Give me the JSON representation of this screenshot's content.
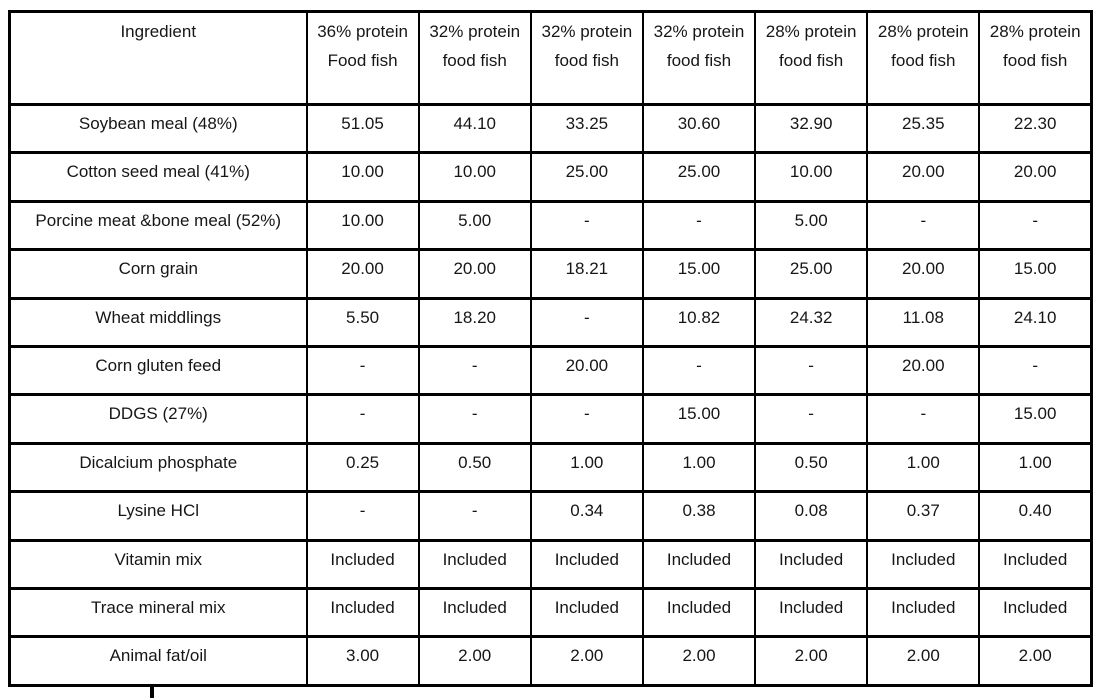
{
  "table": {
    "header": {
      "ingredient": "Ingredient",
      "columns": [
        {
          "line1": "36% protein",
          "line2": "Food fish"
        },
        {
          "line1": "32% protein",
          "line2": "food fish"
        },
        {
          "line1": "32% protein",
          "line2": "food fish"
        },
        {
          "line1": "32% protein",
          "line2": "food fish"
        },
        {
          "line1": "28% protein",
          "line2": "food fish"
        },
        {
          "line1": "28% protein",
          "line2": "food fish"
        },
        {
          "line1": "28% protein",
          "line2": "food fish"
        }
      ]
    },
    "rows": [
      {
        "name": "Soybean meal (48%)",
        "values": [
          "51.05",
          "44.10",
          "33.25",
          "30.60",
          "32.90",
          "25.35",
          "22.30"
        ]
      },
      {
        "name": "Cotton seed meal (41%)",
        "values": [
          "10.00",
          "10.00",
          "25.00",
          "25.00",
          "10.00",
          "20.00",
          "20.00"
        ]
      },
      {
        "name": "Porcine meat &bone meal (52%)",
        "values": [
          "10.00",
          "5.00",
          "-",
          "-",
          "5.00",
          "-",
          "-"
        ]
      },
      {
        "name": "Corn grain",
        "values": [
          "20.00",
          "20.00",
          "18.21",
          "15.00",
          "25.00",
          "20.00",
          "15.00"
        ]
      },
      {
        "name": "Wheat middlings",
        "values": [
          "5.50",
          "18.20",
          "-",
          "10.82",
          "24.32",
          "11.08",
          "24.10"
        ]
      },
      {
        "name": "Corn gluten feed",
        "values": [
          "-",
          "-",
          "20.00",
          "-",
          "-",
          "20.00",
          "-"
        ]
      },
      {
        "name": "DDGS (27%)",
        "values": [
          "-",
          "-",
          "-",
          "15.00",
          "-",
          "-",
          "15.00"
        ]
      },
      {
        "name": "Dicalcium phosphate",
        "values": [
          "0.25",
          "0.50",
          "1.00",
          "1.00",
          "0.50",
          "1.00",
          "1.00"
        ]
      },
      {
        "name": "Lysine HCl",
        "values": [
          "-",
          "-",
          "0.34",
          "0.38",
          "0.08",
          "0.37",
          "0.40"
        ]
      },
      {
        "name": "Vitamin mix",
        "values": [
          "Included",
          "Included",
          "Included",
          "Included",
          "Included",
          "Included",
          "Included"
        ]
      },
      {
        "name": "Trace mineral mix",
        "values": [
          "Included",
          "Included",
          "Included",
          "Included",
          "Included",
          "Included",
          "Included"
        ]
      },
      {
        "name": "Animal fat/oil",
        "values": [
          "3.00",
          "2.00",
          "2.00",
          "2.00",
          "2.00",
          "2.00",
          "2.00"
        ]
      }
    ]
  }
}
